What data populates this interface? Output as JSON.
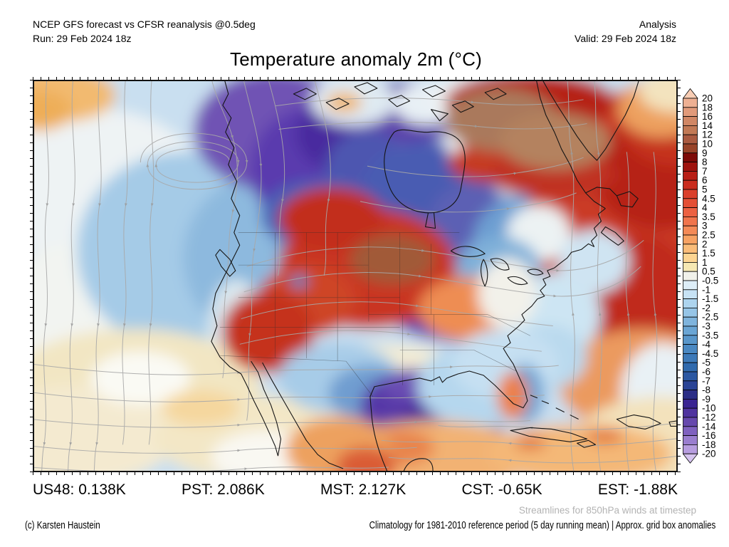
{
  "header": {
    "left_line1": "NCEP GFS forecast vs CFSR reanalysis @0.5deg",
    "left_line2": "Run: 29 Feb 2024 18z",
    "right_line1": "Analysis",
    "right_line2": "Valid: 29 Feb 2024 18z"
  },
  "title": "Temperature anomaly 2m (°C)",
  "stats": [
    {
      "text": "US48: 0.138K"
    },
    {
      "text": "PST: 2.086K"
    },
    {
      "text": "MST: 2.127K"
    },
    {
      "text": "CST: -0.65K"
    },
    {
      "text": "EST: -1.88K"
    }
  ],
  "notes": {
    "streamlines": "Streamlines for 850hPa winds at timestep",
    "credit": "(c) Karsten Haustein",
    "climatology": "Climatology for 1981-2010 reference period (5 day running mean) | Approx. grid box anomalies"
  },
  "colorbar": {
    "ticks": [
      "20",
      "18",
      "16",
      "14",
      "12",
      "10",
      "9",
      "8",
      "7",
      "6",
      "5",
      "4.5",
      "4",
      "3.5",
      "3",
      "2.5",
      "2",
      "1.5",
      "1",
      "0.5",
      "-0.5",
      "-1",
      "-1.5",
      "-2",
      "-2.5",
      "-3",
      "-3.5",
      "-4",
      "-4.5",
      "-5",
      "-6",
      "-7",
      "-8",
      "-9",
      "-10",
      "-12",
      "-14",
      "-16",
      "-18",
      "-20"
    ],
    "colors": [
      "#f8cdb4",
      "#eeb093",
      "#e19a7a",
      "#d18765",
      "#c27955",
      "#aa5a40",
      "#984328",
      "#7d0b08",
      "#9f130e",
      "#b81e15",
      "#ca2c1e",
      "#da3f2b",
      "#e44f35",
      "#ec6142",
      "#f0744c",
      "#f48a57",
      "#f7a263",
      "#fabc79",
      "#fcd492",
      "#f6e8b3",
      "#f1f1ea",
      "#ddedf7",
      "#c7e2f4",
      "#add4ee",
      "#96c5e7",
      "#7fb4dd",
      "#6aa5d4",
      "#5996ca",
      "#4a88c2",
      "#3d7ab9",
      "#306aae",
      "#2b57a2",
      "#2a4496",
      "#2b2d86",
      "#3a2492",
      "#4f339f",
      "#6648ad",
      "#7f61bf",
      "#9a7ecf",
      "#b79ddf",
      "#d5c3ee"
    ]
  },
  "chart_data": {
    "type": "heatmap",
    "title": "Temperature anomaly 2m (°C)",
    "geography": "North America and adjacent Pacific / Atlantic oceans",
    "overlay": "850hPa wind streamlines (gray, with arrowheads)",
    "colorbar_range_degC": [
      -20,
      20
    ],
    "colorbar_ticks_degC": [
      20,
      18,
      16,
      14,
      12,
      10,
      9,
      8,
      7,
      6,
      5,
      4.5,
      4,
      3.5,
      3,
      2.5,
      2,
      1.5,
      1,
      0.5,
      -0.5,
      -1,
      -1.5,
      -2,
      -2.5,
      -3,
      -3.5,
      -4,
      -4.5,
      -5,
      -6,
      -7,
      -8,
      -9,
      -10,
      -12,
      -14,
      -16,
      -18,
      -20
    ],
    "regional_mean_anomalies_K": {
      "US48": 0.138,
      "PST": 2.086,
      "MST": 2.127,
      "CST": -0.65,
      "EST": -1.88
    },
    "notable_features": [
      "strong warm anomaly (+6 to +14) over northern US Plains, Rockies and Great Basin with brown core over the Dakotas",
      "very warm anomaly (+10 to +16, brown) over southern Greenland / Labrador / Baffin region",
      "large warm anomaly over the central North Atlantic",
      "cold anomaly (-6 to -14, purple) over British Columbia, Hudson Bay, Ontario and Quebec",
      "cold anomaly (-8 to -12, purple) over Texas / Oklahoma / southern Plains",
      "cool anomaly over the NE Pacific, mild warm anomaly over Gulf of Mexico and Caribbean"
    ]
  }
}
